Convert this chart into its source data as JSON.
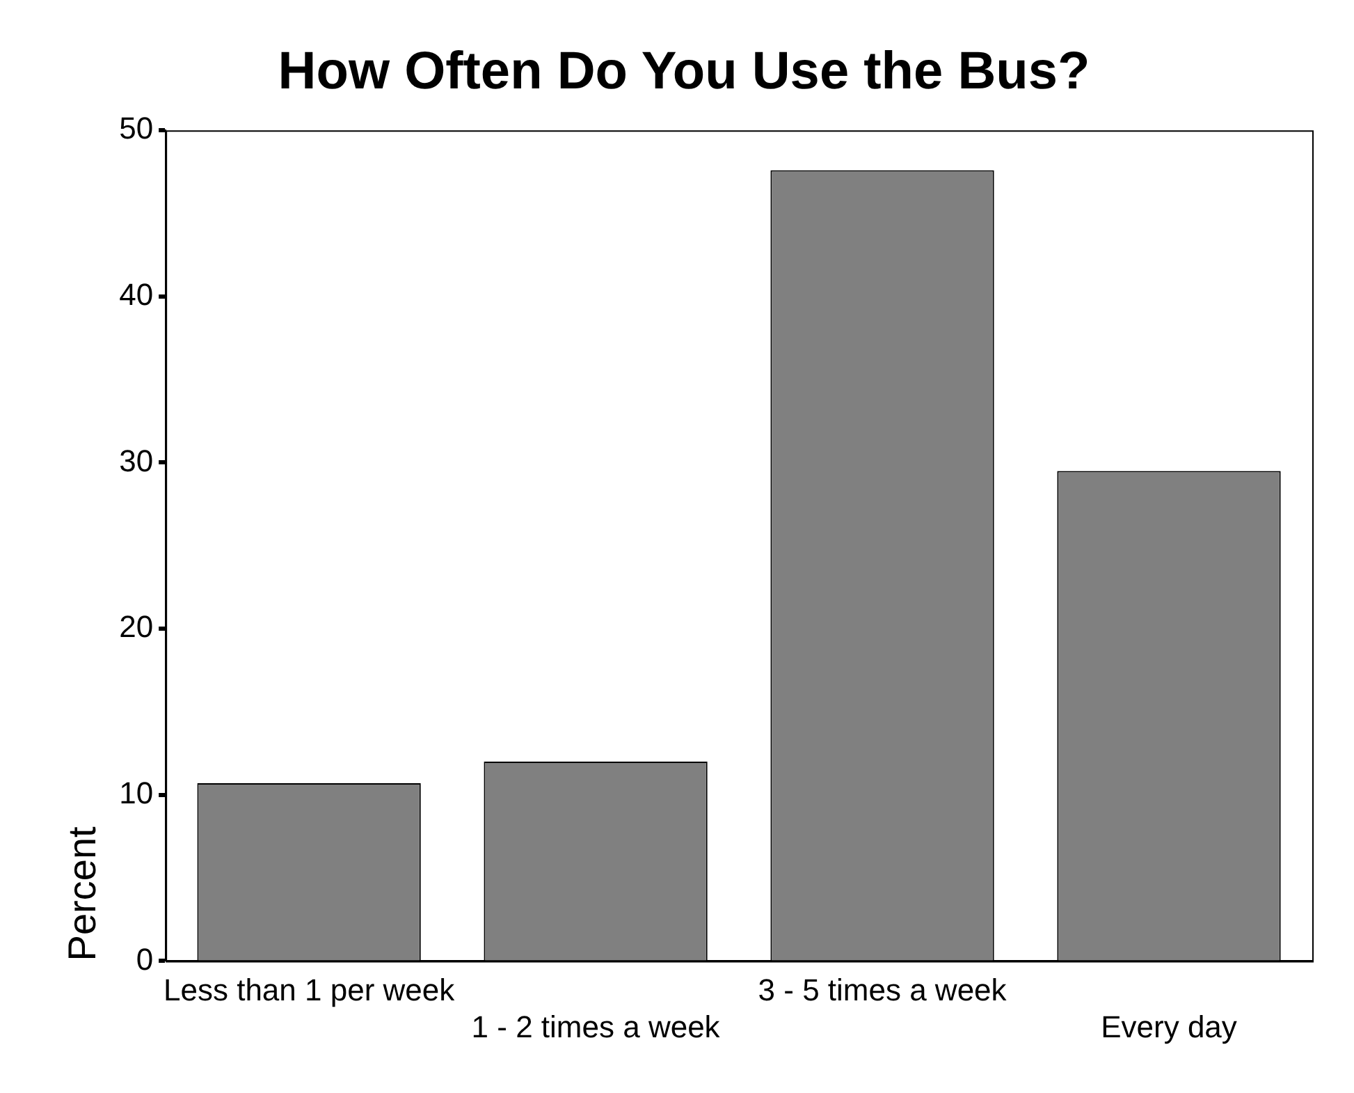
{
  "chart_data": {
    "type": "bar",
    "title": "How Often Do You Use the Bus?",
    "ylabel": "Percent",
    "categories": [
      "Less than 1 per week",
      "1 - 2 times a week",
      "3 - 5 times a week",
      "Every day"
    ],
    "values": [
      10.7,
      12.0,
      47.6,
      29.5
    ],
    "color": "#808080",
    "ylim": [
      0,
      50
    ],
    "yticks": [
      0,
      10,
      20,
      30,
      40,
      50
    ],
    "grid": false,
    "legend": false
  }
}
